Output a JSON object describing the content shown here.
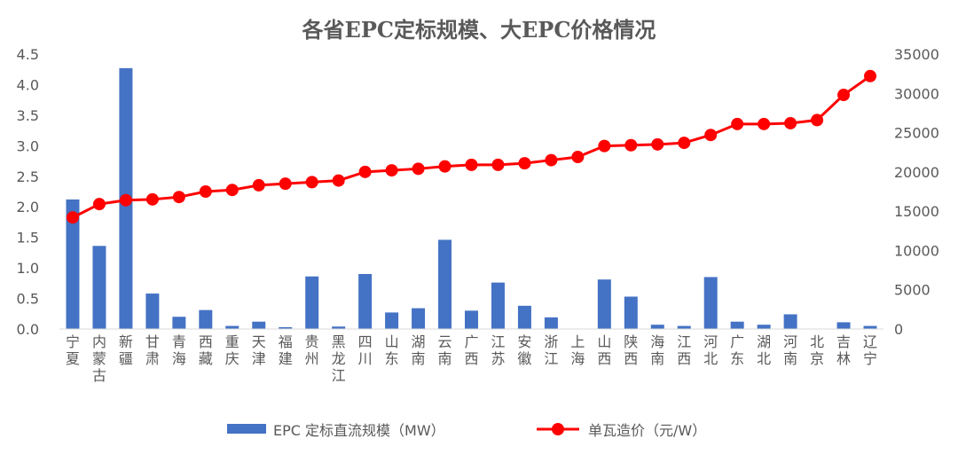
{
  "chart_data": {
    "type": "bar+line",
    "title": "各省EPC定标规模、大EPC价格情况",
    "categories": [
      "宁夏",
      "内蒙古",
      "新疆",
      "甘肃",
      "青海",
      "西藏",
      "重庆",
      "天津",
      "福建",
      "贵州",
      "黑龙江",
      "四川",
      "山东",
      "湖南",
      "云南",
      "广西",
      "江苏",
      "安徽",
      "浙江",
      "上海",
      "山西",
      "陕西",
      "海南",
      "江西",
      "河北",
      "广东",
      "湖北",
      "河南",
      "北京",
      "吉林",
      "辽宁"
    ],
    "series": [
      {
        "name": "EPC 定标直流规模（MW）",
        "type": "bar",
        "axis": "left",
        "color": "#4472C4",
        "values": [
          2.12,
          1.36,
          4.27,
          0.58,
          0.2,
          0.31,
          0.05,
          0.12,
          0.03,
          0.86,
          0.04,
          0.9,
          0.27,
          0.34,
          1.46,
          0.3,
          0.76,
          0.38,
          0.19,
          0.0,
          0.81,
          0.53,
          0.07,
          0.05,
          0.85,
          0.12,
          0.07,
          0.24,
          0.0,
          0.11,
          0.05
        ]
      },
      {
        "name": "单瓦造价（元/W）",
        "type": "line",
        "axis": "right",
        "color": "#FF0000",
        "values": [
          14200,
          15900,
          16400,
          16500,
          16800,
          17500,
          17700,
          18300,
          18500,
          18700,
          18900,
          20000,
          20200,
          20400,
          20700,
          20900,
          20900,
          21100,
          21500,
          21900,
          23300,
          23400,
          23500,
          23700,
          24700,
          26100,
          26100,
          26200,
          26600,
          29800,
          32200
        ]
      }
    ],
    "y_left": {
      "min": 0,
      "max": 4.5,
      "ticks": [
        "0.0",
        "0.5",
        "1.0",
        "1.5",
        "2.0",
        "2.5",
        "3.0",
        "3.5",
        "4.0",
        "4.5"
      ]
    },
    "y_right": {
      "min": 0,
      "max": 35000,
      "ticks": [
        "0",
        "5000",
        "10000",
        "15000",
        "20000",
        "25000",
        "30000",
        "35000"
      ]
    },
    "grid": false,
    "legend": "bottom"
  }
}
